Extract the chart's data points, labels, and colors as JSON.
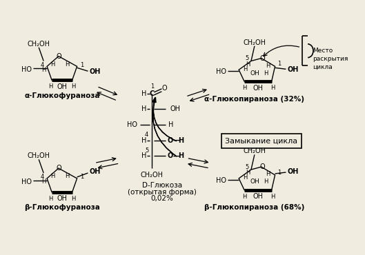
{
  "bg_color": "#f0ece0",
  "labels": {
    "alpha_furanose": "α-Глюкофураноза",
    "beta_furanose": "β-Глюкофураноза",
    "alpha_pyranose": "α-Глюкопираноза (32%)",
    "beta_pyranose": "β-Глюкопираноза (68%)",
    "open_form_1": "D-Глюкоза",
    "open_form_2": "(открытая форма)",
    "open_form_3": "0,02%",
    "cycle_closing": "Замыкание цикла",
    "cycle_opening_1": "Место",
    "cycle_opening_2": "раскрытия",
    "cycle_opening_3": "цикла"
  }
}
